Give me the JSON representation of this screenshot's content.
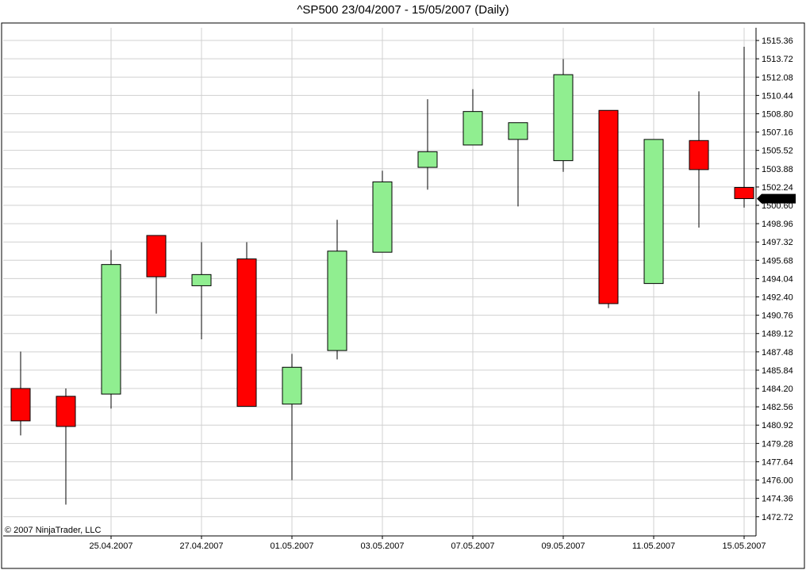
{
  "chart_data": {
    "type": "candlestick",
    "title": "^SP500  23/04/2007 - 15/05/2007 (Daily)",
    "copyright": "© 2007 NinjaTrader, LLC",
    "ylim": [
      1471.0,
      1516.5
    ],
    "y_ticks": [
      "1515.36",
      "1513.72",
      "1512.08",
      "1510.44",
      "1508.80",
      "1507.16",
      "1505.52",
      "1503.88",
      "1502.24",
      "1500.60",
      "1498.96",
      "1497.32",
      "1495.68",
      "1494.04",
      "1492.40",
      "1490.76",
      "1489.12",
      "1487.48",
      "1485.84",
      "1484.20",
      "1482.56",
      "1480.92",
      "1479.28",
      "1477.64",
      "1476.00",
      "1474.36",
      "1472.72"
    ],
    "x_tick_labels": [
      "25.04.2007",
      "27.04.2007",
      "01.05.2007",
      "03.05.2007",
      "07.05.2007",
      "09.05.2007",
      "11.05.2007",
      "15.05.2007"
    ],
    "last_price": "1501.19",
    "up_color": "#90ee90",
    "down_color": "#ff0000",
    "candles": [
      {
        "date": "23.04.2007",
        "open": 1484.2,
        "high": 1487.5,
        "low": 1480.0,
        "close": 1481.3
      },
      {
        "date": "24.04.2007",
        "open": 1483.5,
        "high": 1484.2,
        "low": 1473.8,
        "close": 1480.8
      },
      {
        "date": "25.04.2007",
        "open": 1483.7,
        "high": 1496.6,
        "low": 1482.4,
        "close": 1495.3
      },
      {
        "date": "26.04.2007",
        "open": 1497.9,
        "high": 1497.9,
        "low": 1490.9,
        "close": 1494.2
      },
      {
        "date": "27.04.2007",
        "open": 1493.4,
        "high": 1497.3,
        "low": 1488.6,
        "close": 1494.4
      },
      {
        "date": "30.04.2007",
        "open": 1495.8,
        "high": 1497.3,
        "low": 1482.6,
        "close": 1482.6
      },
      {
        "date": "01.05.2007",
        "open": 1482.8,
        "high": 1487.3,
        "low": 1476.0,
        "close": 1486.1
      },
      {
        "date": "02.05.2007",
        "open": 1487.6,
        "high": 1499.3,
        "low": 1486.8,
        "close": 1496.5
      },
      {
        "date": "03.05.2007",
        "open": 1496.4,
        "high": 1503.7,
        "low": 1496.4,
        "close": 1502.7
      },
      {
        "date": "04.05.2007",
        "open": 1504.0,
        "high": 1510.1,
        "low": 1502.0,
        "close": 1505.4
      },
      {
        "date": "07.05.2007",
        "open": 1506.0,
        "high": 1511.0,
        "low": 1506.0,
        "close": 1509.0
      },
      {
        "date": "08.05.2007",
        "open": 1506.5,
        "high": 1508.0,
        "low": 1500.5,
        "close": 1508.0
      },
      {
        "date": "09.05.2007",
        "open": 1504.6,
        "high": 1513.7,
        "low": 1503.6,
        "close": 1512.3
      },
      {
        "date": "10.05.2007",
        "open": 1509.1,
        "high": 1509.1,
        "low": 1491.4,
        "close": 1491.8
      },
      {
        "date": "11.05.2007",
        "open": 1493.6,
        "high": 1506.5,
        "low": 1493.6,
        "close": 1506.5
      },
      {
        "date": "14.05.2007",
        "open": 1506.4,
        "high": 1510.8,
        "low": 1498.6,
        "close": 1503.8
      },
      {
        "date": "15.05.2007",
        "open": 1502.2,
        "high": 1514.8,
        "low": 1500.4,
        "close": 1501.2
      }
    ]
  }
}
